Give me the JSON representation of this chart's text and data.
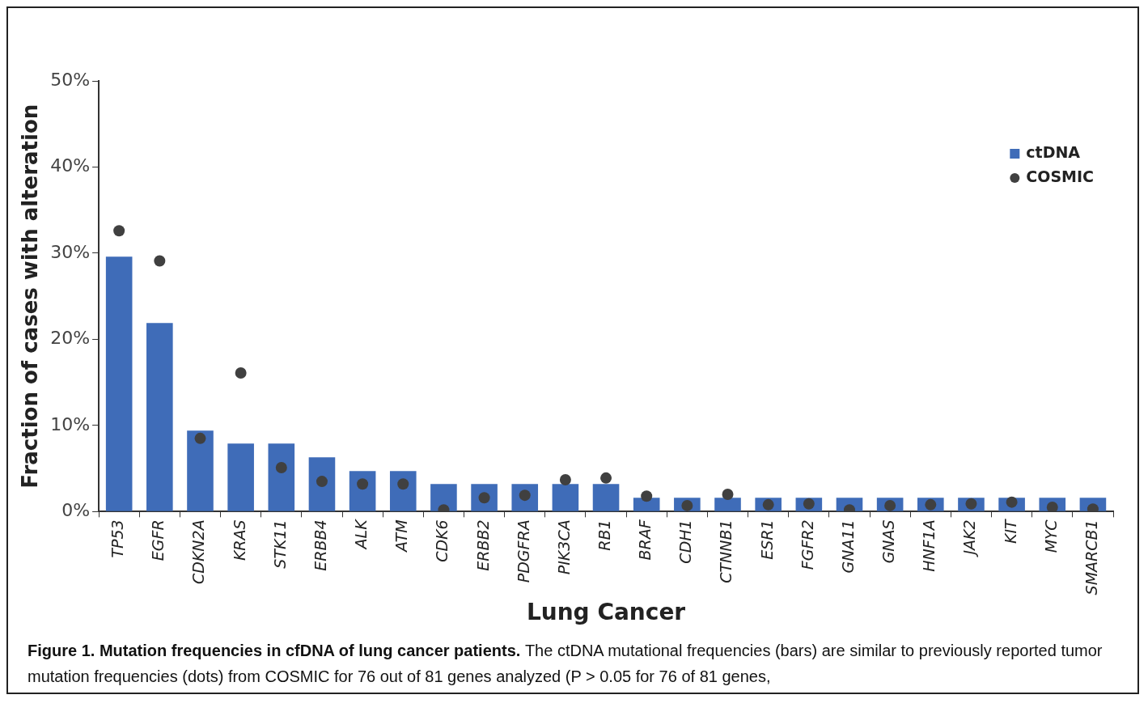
{
  "chart_data": {
    "type": "bar",
    "ylabel": "Fraction of cases with alteration",
    "xlabel": "Lung Cancer",
    "categories": [
      "TP53",
      "EGFR",
      "CDKN2A",
      "KRAS",
      "STK11",
      "ERBB4",
      "ALK",
      "ATM",
      "CDK6",
      "ERBB2",
      "PDGFRA",
      "PIK3CA",
      "RB1",
      "BRAF",
      "CDH1",
      "CTNNB1",
      "ESR1",
      "FGFR2",
      "GNA11",
      "GNAS",
      "HNF1A",
      "JAK2",
      "KIT",
      "MYC",
      "SMARCB1"
    ],
    "series": [
      {
        "name": "ctDNA",
        "color": "#3f6cb8",
        "values": [
          29.6,
          21.9,
          9.4,
          7.9,
          7.9,
          6.3,
          4.7,
          4.7,
          3.2,
          3.2,
          3.2,
          3.2,
          3.2,
          1.6,
          1.6,
          1.6,
          1.6,
          1.6,
          1.6,
          1.6,
          1.6,
          1.6,
          1.6,
          1.6,
          1.6
        ]
      },
      {
        "name": "COSMIC",
        "type": "scatter",
        "color": "#404040",
        "values": [
          32.6,
          29.1,
          8.5,
          16.1,
          5.1,
          3.5,
          3.2,
          3.2,
          0.2,
          1.6,
          1.9,
          3.7,
          3.9,
          1.8,
          0.7,
          2.0,
          0.8,
          0.9,
          0.2,
          0.7,
          0.8,
          0.9,
          1.1,
          0.5,
          0.3
        ]
      }
    ],
    "ylim": [
      0,
      50
    ],
    "yticks": [
      {
        "value": 0,
        "label": "0%"
      },
      {
        "value": 10,
        "label": "10%"
      },
      {
        "value": 20,
        "label": "20%"
      },
      {
        "value": 30,
        "label": "30%"
      },
      {
        "value": 40,
        "label": "40%"
      },
      {
        "value": 50,
        "label": "50%"
      }
    ],
    "grid": false,
    "legend": "top right",
    "marker": "circle",
    "annotations": [
      "Figure 1. Mutation frequencies in cfDNA of lung cancer patients.",
      "The ctDNA mutational frequencies (bars) are similar to previously reported tumor mutation frequencies (dots) from COSMIC for 76 out of 81 genes analyzed (P > 0.05 for 76 of 81 genes,"
    ]
  }
}
